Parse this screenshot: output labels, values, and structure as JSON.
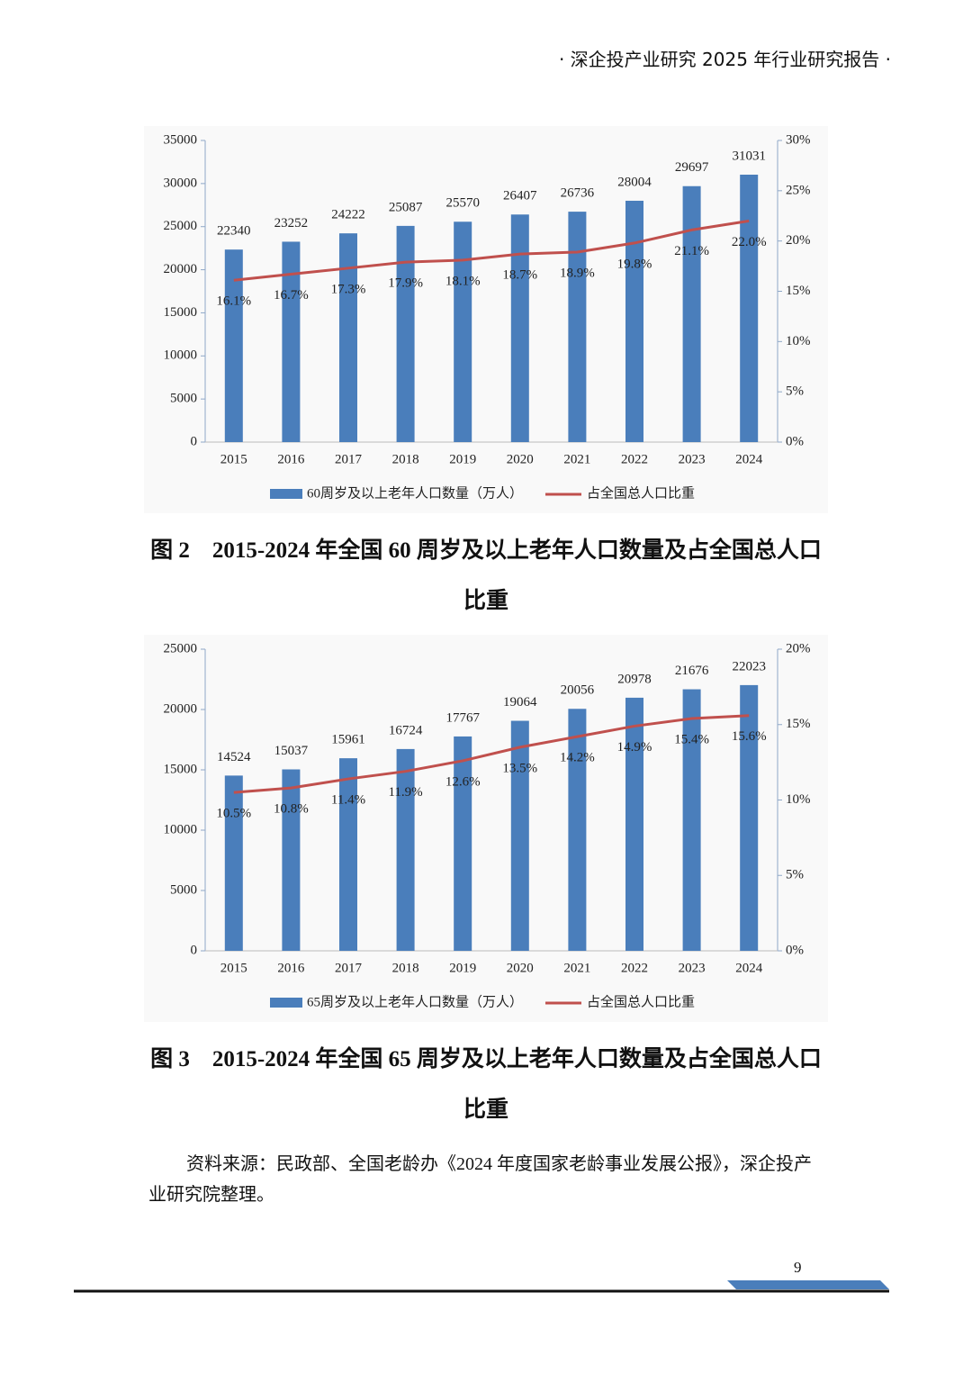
{
  "header": "· 深企投产业研究 2025 年行业研究报告 ·",
  "chart_data": [
    {
      "type": "bar",
      "categories": [
        "2015",
        "2016",
        "2017",
        "2018",
        "2019",
        "2020",
        "2021",
        "2022",
        "2023",
        "2024"
      ],
      "series": [
        {
          "name": "60周岁及以上老年人口数量（万人）",
          "type": "bar",
          "color": "#4a7ebb",
          "values": [
            22340,
            23252,
            24222,
            25087,
            25570,
            26407,
            26736,
            28004,
            29697,
            31031
          ]
        },
        {
          "name": "占全国总人口比重",
          "type": "line",
          "axis": "y2",
          "color": "#c0504d",
          "values": [
            16.1,
            16.7,
            17.3,
            17.9,
            18.1,
            18.7,
            18.9,
            19.8,
            21.1,
            22.0
          ],
          "value_labels": [
            "16.1%",
            "16.7%",
            "17.3%",
            "17.9%",
            "18.1%",
            "18.7%",
            "18.9%",
            "19.8%",
            "21.1%",
            "22.0%"
          ]
        }
      ],
      "ylim": [
        0,
        35000
      ],
      "yticks": [
        0,
        5000,
        10000,
        15000,
        20000,
        25000,
        30000,
        35000
      ],
      "y2lim": [
        0,
        30
      ],
      "y2ticks": [
        {
          "value": 0,
          "label": "0%"
        },
        {
          "value": 5,
          "label": "5%"
        },
        {
          "value": 10,
          "label": "10%"
        },
        {
          "value": 15,
          "label": "15%"
        },
        {
          "value": 20,
          "label": "20%"
        },
        {
          "value": 25,
          "label": "25%"
        },
        {
          "value": 30,
          "label": "30%"
        }
      ],
      "legend": "bottom"
    },
    {
      "type": "bar",
      "categories": [
        "2015",
        "2016",
        "2017",
        "2018",
        "2019",
        "2020",
        "2021",
        "2022",
        "2023",
        "2024"
      ],
      "series": [
        {
          "name": "65周岁及以上老年人口数量（万人）",
          "type": "bar",
          "color": "#4a7ebb",
          "values": [
            14524,
            15037,
            15961,
            16724,
            17767,
            19064,
            20056,
            20978,
            21676,
            22023
          ]
        },
        {
          "name": "占全国总人口比重",
          "type": "line",
          "axis": "y2",
          "color": "#c0504d",
          "values": [
            10.5,
            10.8,
            11.4,
            11.9,
            12.6,
            13.5,
            14.2,
            14.9,
            15.4,
            15.6
          ],
          "value_labels": [
            "10.5%",
            "10.8%",
            "11.4%",
            "11.9%",
            "12.6%",
            "13.5%",
            "14.2%",
            "14.9%",
            "15.4%",
            "15.6%"
          ]
        }
      ],
      "ylim": [
        0,
        25000
      ],
      "yticks": [
        0,
        5000,
        10000,
        15000,
        20000,
        25000
      ],
      "y2lim": [
        0,
        20
      ],
      "y2ticks": [
        {
          "value": 0,
          "label": "0%"
        },
        {
          "value": 5,
          "label": "5%"
        },
        {
          "value": 10,
          "label": "10%"
        },
        {
          "value": 15,
          "label": "15%"
        },
        {
          "value": 20,
          "label": "20%"
        }
      ],
      "legend": "bottom"
    }
  ],
  "captions": [
    "图 2　2015-2024 年全国 60 周岁及以上老年人口数量及占全国总人口比重",
    "图 3　2015-2024 年全国 65 周岁及以上老年人口数量及占全国总人口比重"
  ],
  "source": "资料来源：民政部、全国老龄办《2024 年度国家老龄事业发展公报》，深企投产业研究院整理。",
  "page_number": "9"
}
